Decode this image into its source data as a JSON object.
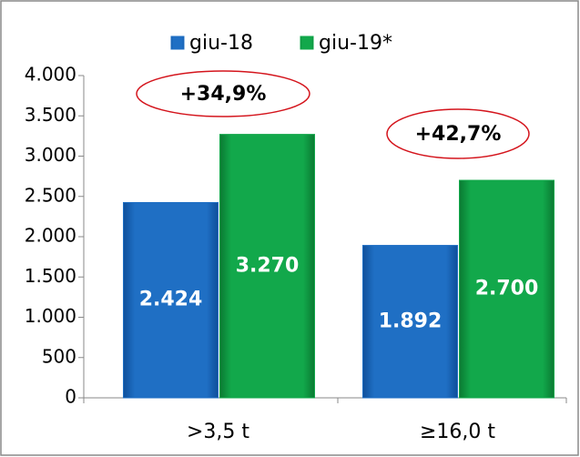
{
  "chart_data": {
    "type": "bar",
    "categories": [
      ">3,5 t",
      "≥16,0 t"
    ],
    "series": [
      {
        "name": "giu-18",
        "color": "#1f6fc4",
        "values": [
          2424,
          1892
        ],
        "value_labels": [
          "2.424",
          "1.892"
        ]
      },
      {
        "name": "giu-19*",
        "color": "#12a84b",
        "values": [
          3270,
          2700
        ],
        "value_labels": [
          "3.270",
          "2.700"
        ]
      }
    ],
    "annotations": [
      "+34,9%",
      "+42,7%"
    ],
    "ylim": [
      0,
      4000
    ],
    "yticks": [
      0,
      500,
      {
        "value": 1000,
        "label": "1.000"
      },
      {
        "value": 1500,
        "label": "1.500"
      },
      {
        "value": 2000,
        "label": "2.000"
      },
      {
        "value": 2500,
        "label": "2.500"
      },
      {
        "value": 3000,
        "label": "3.000"
      },
      {
        "value": 3500,
        "label": "3.500"
      },
      {
        "value": 4000,
        "label": "4.000"
      }
    ],
    "legend": "top"
  }
}
